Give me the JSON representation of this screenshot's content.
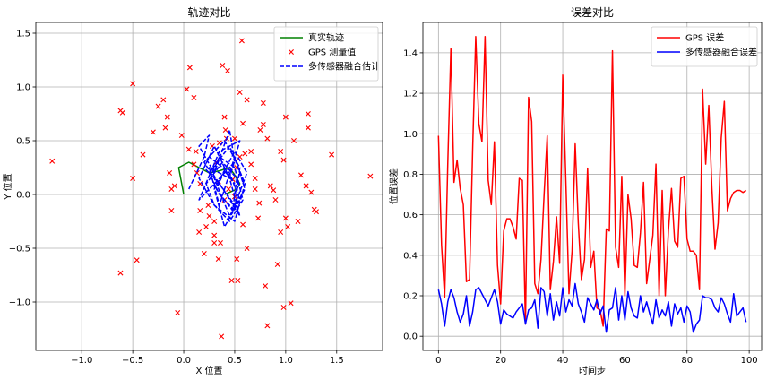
{
  "chart_data": [
    {
      "type": "scatter",
      "title": "轨迹对比",
      "xlabel": "X 位置",
      "ylabel": "Y 位置",
      "xlim": [
        -1.45,
        1.95
      ],
      "ylim": [
        -1.45,
        1.6
      ],
      "xticks": [
        -1.0,
        -0.5,
        0.0,
        0.5,
        1.0,
        1.5
      ],
      "xtick_labels": [
        "−1.0",
        "−0.5",
        "0.0",
        "0.5",
        "1.0",
        "1.5"
      ],
      "yticks": [
        -1.0,
        -0.5,
        0.0,
        0.5,
        1.0,
        1.5
      ],
      "ytick_labels": [
        "−1.0",
        "−0.5",
        "0.0",
        "0.5",
        "1.0",
        "1.5"
      ],
      "grid": true,
      "legend_position": "top-right",
      "series": [
        {
          "name": "真实轨迹",
          "style": "line",
          "color": "#008000",
          "x": [
            0.0,
            -0.05,
            0.05,
            0.15,
            0.25,
            0.35,
            0.45,
            0.5,
            0.55,
            0.52,
            0.45,
            0.4
          ],
          "y": [
            0.0,
            0.25,
            0.3,
            0.25,
            0.2,
            0.22,
            0.25,
            0.18,
            0.1,
            0.05,
            0.02,
            0.0
          ]
        },
        {
          "name": "GPS 测量值",
          "style": "x",
          "color": "#ff0000",
          "x": [
            -1.29,
            -0.62,
            -0.62,
            -0.5,
            -0.5,
            -0.46,
            -0.4,
            -0.6,
            -0.2,
            -0.18,
            -0.16,
            -0.14,
            -0.12,
            -0.12,
            -0.09,
            -0.06,
            -0.02,
            0.03,
            0.06,
            0.1,
            0.12,
            0.13,
            0.16,
            0.22,
            0.24,
            0.28,
            0.3,
            0.32,
            0.34,
            0.37,
            0.38,
            0.4,
            0.41,
            0.43,
            0.47,
            0.5,
            0.52,
            0.55,
            0.57,
            0.58,
            0.6,
            0.62,
            0.66,
            0.7,
            0.73,
            0.75,
            0.78,
            0.8,
            0.82,
            0.85,
            0.88,
            0.92,
            0.95,
            0.98,
            1.0,
            1.02,
            1.05,
            1.08,
            1.12,
            1.15,
            1.2,
            1.22,
            1.25,
            1.28,
            1.3,
            1.45,
            1.83,
            0.36,
            0.4,
            0.44,
            0.48,
            0.52,
            0.55,
            0.2,
            0.25,
            0.3,
            -0.3,
            -0.25,
            0.9,
            0.35,
            0.62,
            0.1,
            0.05,
            0.15,
            0.5,
            0.53,
            0.58,
            0.66,
            0.7,
            0.74,
            0.78,
            0.82,
            1.22,
            1.0,
            0.98,
            0.95,
            0.3,
            0.34,
            0.42,
            0.16
          ],
          "y": [
            0.31,
            0.78,
            -0.73,
            1.03,
            0.15,
            -0.61,
            0.37,
            0.76,
            0.88,
            0.62,
            0.72,
            0.2,
            0.05,
            -0.15,
            0.08,
            -1.1,
            0.55,
            0.98,
            1.18,
            0.28,
            0.4,
            0.2,
            -0.15,
            -0.3,
            -0.1,
            0.45,
            -0.38,
            0.3,
            0.12,
            -1.32,
            1.2,
            0.72,
            0.6,
            1.15,
            -0.8,
            0.52,
            -0.6,
            0.95,
            1.43,
            0.66,
            0.38,
            -0.5,
            0.4,
            0.15,
            -0.22,
            0.6,
            0.65,
            -0.85,
            0.52,
            0.08,
            0.04,
            -0.65,
            -0.35,
            -1.05,
            0.72,
            -0.3,
            -1.01,
            0.5,
            -0.25,
            0.18,
            0.08,
            0.75,
            0.02,
            -0.14,
            -0.16,
            0.37,
            0.17,
            -0.45,
            -0.05,
            0.05,
            0.14,
            0.25,
            0.35,
            -0.55,
            -0.2,
            -0.25,
            0.58,
            0.82,
            -0.05,
            0.48,
            0.88,
            0.9,
            0.42,
            -0.35,
            -0.02,
            -0.8,
            -0.28,
            0.28,
            0.05,
            -0.08,
            0.85,
            -1.22,
            0.62,
            -0.22,
            0.32,
            0.4,
            -0.45,
            -0.6,
            0.52,
            0.1
          ]
        },
        {
          "name": "多传感器融合估计",
          "style": "dashed",
          "color": "#0000ff",
          "x": [
            0.05,
            0.2,
            0.25,
            0.15,
            0.3,
            0.45,
            0.5,
            0.3,
            0.15,
            0.35,
            0.55,
            0.45,
            0.25,
            0.35,
            0.5,
            0.6,
            0.45,
            0.3,
            0.2,
            0.4,
            0.55,
            0.5,
            0.35,
            0.25,
            0.45,
            0.6,
            0.5,
            0.3,
            0.15,
            0.25,
            0.45,
            0.55,
            0.4,
            0.3,
            0.5,
            0.62,
            0.5,
            0.35,
            0.2,
            0.3,
            0.45,
            0.55,
            0.42,
            0.28,
            0.35,
            0.5,
            0.58,
            0.45,
            0.3,
            0.22,
            0.38,
            0.52,
            0.48,
            0.32,
            0.4,
            0.5
          ],
          "y": [
            0.05,
            0.35,
            0.55,
            0.45,
            0.2,
            0.6,
            0.3,
            0.1,
            -0.05,
            0.4,
            0.5,
            0.15,
            0.25,
            -0.1,
            0.35,
            0.05,
            -0.2,
            0.15,
            0.3,
            0.5,
            0.25,
            -0.15,
            0.0,
            0.2,
            0.45,
            0.1,
            -0.25,
            -0.1,
            0.15,
            0.35,
            0.2,
            -0.05,
            -0.3,
            0.05,
            0.4,
            0.2,
            -0.1,
            0.1,
            0.25,
            0.45,
            0.15,
            -0.2,
            0.0,
            0.2,
            0.35,
            0.25,
            -0.05,
            -0.25,
            -0.1,
            0.1,
            0.3,
            0.15,
            -0.15,
            0.05,
            0.22,
            0.1
          ]
        }
      ]
    },
    {
      "type": "line",
      "title": "误差对比",
      "xlabel": "时间步",
      "ylabel": "位置误差",
      "xlim": [
        -5,
        104
      ],
      "ylim": [
        -0.07,
        1.55
      ],
      "xticks": [
        0,
        20,
        40,
        60,
        80,
        100
      ],
      "xtick_labels": [
        "0",
        "20",
        "40",
        "60",
        "80",
        "100"
      ],
      "yticks": [
        0.0,
        0.2,
        0.4,
        0.6,
        0.8,
        1.0,
        1.2,
        1.4
      ],
      "ytick_labels": [
        "0.0",
        "0.2",
        "0.4",
        "0.6",
        "0.8",
        "1.0",
        "1.2",
        "1.4"
      ],
      "grid": true,
      "legend_position": "top-right",
      "x": [
        0,
        1,
        2,
        3,
        4,
        5,
        6,
        7,
        8,
        9,
        10,
        11,
        12,
        13,
        14,
        15,
        16,
        17,
        18,
        19,
        20,
        21,
        22,
        23,
        24,
        25,
        26,
        27,
        28,
        29,
        30,
        31,
        32,
        33,
        34,
        35,
        36,
        37,
        38,
        39,
        40,
        41,
        42,
        43,
        44,
        45,
        46,
        47,
        48,
        49,
        50,
        51,
        52,
        53,
        54,
        55,
        56,
        57,
        58,
        59,
        60,
        61,
        62,
        63,
        64,
        65,
        66,
        67,
        68,
        69,
        70,
        71,
        72,
        73,
        74,
        75,
        76,
        77,
        78,
        79,
        80,
        81,
        82,
        83,
        84,
        85,
        86,
        87,
        88,
        89,
        90,
        91,
        92,
        93,
        94,
        95,
        96,
        97,
        98,
        99
      ],
      "series": [
        {
          "name": "GPS 误差",
          "color": "#ff0000",
          "values": [
            0.99,
            0.45,
            0.19,
            0.85,
            1.42,
            0.76,
            0.87,
            0.73,
            0.65,
            0.27,
            0.28,
            0.92,
            1.48,
            1.05,
            0.96,
            1.48,
            0.77,
            0.65,
            0.96,
            0.35,
            0.16,
            0.52,
            0.58,
            0.58,
            0.54,
            0.48,
            0.78,
            0.77,
            0.06,
            1.18,
            1.06,
            0.26,
            0.21,
            0.38,
            0.7,
            0.99,
            0.23,
            0.37,
            0.59,
            0.36,
            1.29,
            0.77,
            0.21,
            0.42,
            0.95,
            0.56,
            0.28,
            0.38,
            0.83,
            0.34,
            0.42,
            0.14,
            0.13,
            0.05,
            0.53,
            0.52,
            1.41,
            0.44,
            0.34,
            0.79,
            0.2,
            0.7,
            0.58,
            0.35,
            0.34,
            0.51,
            0.76,
            0.26,
            0.38,
            0.5,
            0.85,
            0.2,
            0.72,
            0.2,
            0.52,
            0.73,
            0.47,
            0.44,
            0.78,
            0.79,
            0.48,
            0.42,
            0.42,
            0.4,
            0.23,
            1.22,
            0.85,
            1.14,
            0.73,
            0.43,
            0.56,
            0.98,
            1.16,
            0.62,
            0.68,
            0.71,
            0.72,
            0.72,
            0.71,
            0.72
          ]
        },
        {
          "name": "多传感器融合误差",
          "color": "#0000ff",
          "values": [
            0.23,
            0.16,
            0.05,
            0.17,
            0.23,
            0.19,
            0.12,
            0.07,
            0.11,
            0.2,
            0.05,
            0.12,
            0.23,
            0.24,
            0.21,
            0.18,
            0.15,
            0.19,
            0.23,
            0.17,
            0.06,
            0.13,
            0.11,
            0.1,
            0.09,
            0.12,
            0.14,
            0.16,
            0.06,
            0.13,
            0.14,
            0.18,
            0.04,
            0.24,
            0.22,
            0.1,
            0.21,
            0.08,
            0.17,
            0.1,
            0.24,
            0.12,
            0.18,
            0.15,
            0.26,
            0.16,
            0.12,
            0.07,
            0.19,
            0.16,
            0.13,
            0.18,
            0.11,
            0.15,
            0.02,
            0.13,
            0.14,
            0.24,
            0.08,
            0.2,
            0.08,
            0.22,
            0.14,
            0.1,
            0.09,
            0.2,
            0.12,
            0.17,
            0.11,
            0.06,
            0.18,
            0.09,
            0.13,
            0.1,
            0.17,
            0.05,
            0.16,
            0.11,
            0.14,
            0.07,
            0.15,
            0.12,
            0.02,
            0.06,
            0.08,
            0.2,
            0.19,
            0.19,
            0.18,
            0.14,
            0.12,
            0.19,
            0.16,
            0.11,
            0.07,
            0.21,
            0.1,
            0.12,
            0.14,
            0.07
          ]
        }
      ]
    }
  ]
}
